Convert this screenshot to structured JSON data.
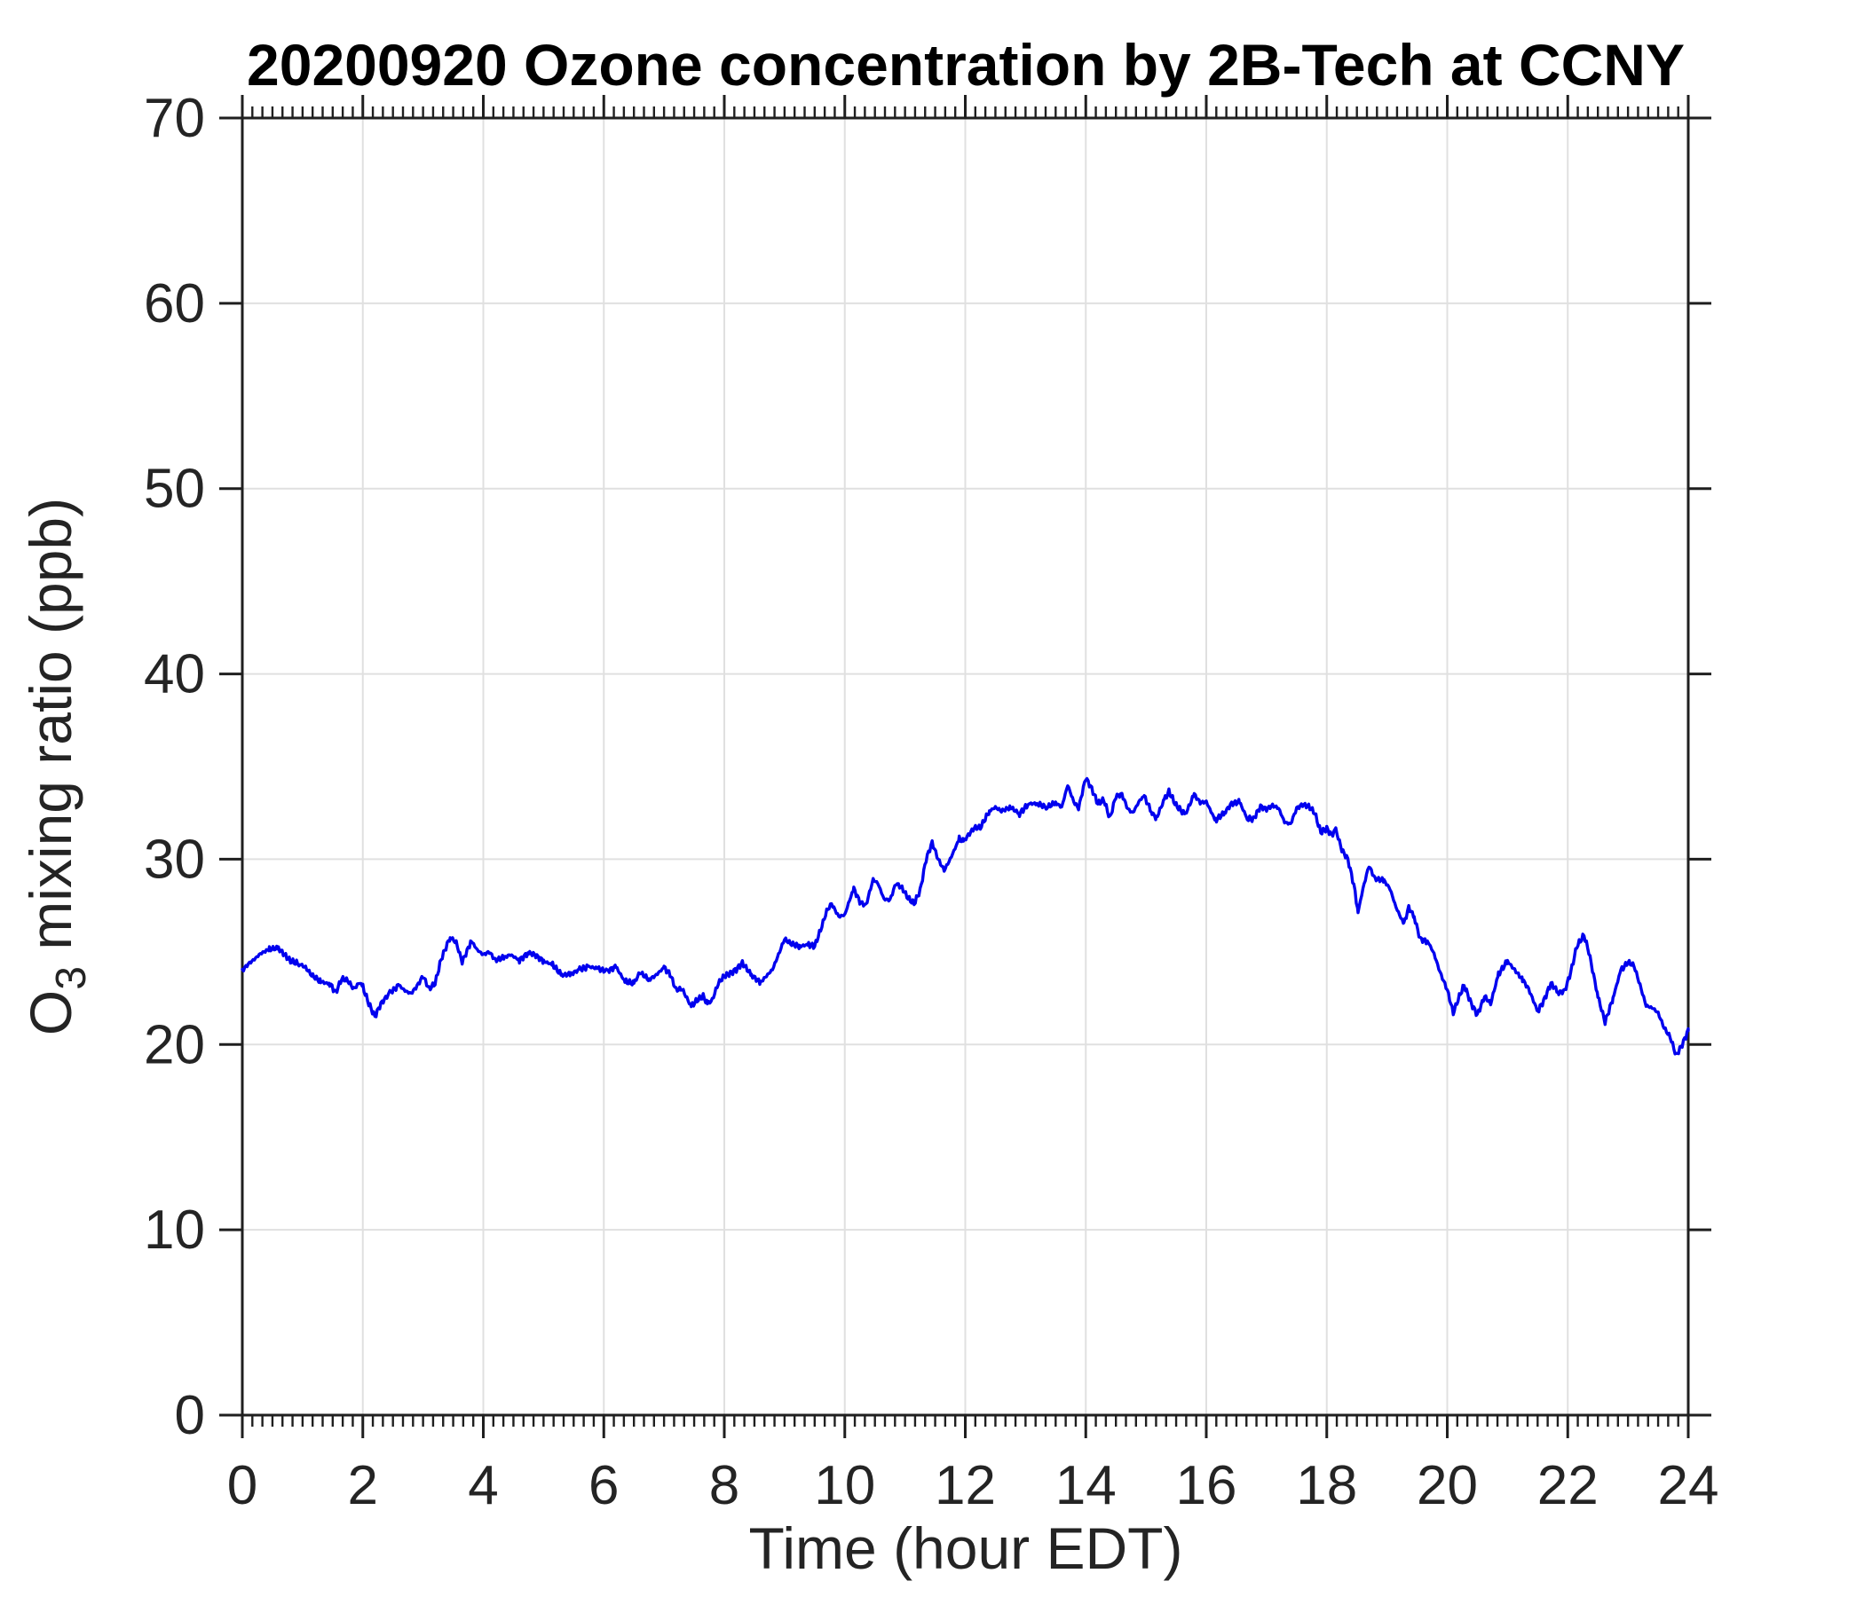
{
  "chart_data": {
    "type": "line",
    "title": "20200920 Ozone concentration by 2B-Tech at CCNY",
    "xlabel": "Time (hour EDT)",
    "ylabel": "O3 mixing ratio (ppb)",
    "ylabel_parts": {
      "pre": "O",
      "sub": "3",
      "post": " mixing ratio (ppb)"
    },
    "xlim": [
      0,
      24
    ],
    "ylim": [
      0,
      70
    ],
    "xticks": [
      0,
      2,
      4,
      6,
      8,
      10,
      12,
      14,
      16,
      18,
      20,
      22,
      24
    ],
    "yticks": [
      0,
      10,
      20,
      30,
      40,
      50,
      60,
      70
    ],
    "xtick_labels": [
      "0",
      "2",
      "4",
      "6",
      "8",
      "10",
      "12",
      "14",
      "16",
      "18",
      "20",
      "22",
      "24"
    ],
    "ytick_labels": [
      "0",
      "10",
      "20",
      "30",
      "40",
      "50",
      "60",
      "70"
    ],
    "x_minor_ticks_per_major": 12,
    "grid": true,
    "legend": "none",
    "line_color": "#0000ee",
    "axis_color": "#1f1f1f",
    "grid_color": "#e0e0e0",
    "series": [
      {
        "name": "O3 mixing ratio",
        "points": [
          [
            0.0,
            24.0
          ],
          [
            0.1,
            24.35
          ],
          [
            0.2,
            24.6
          ],
          [
            0.3,
            24.9
          ],
          [
            0.45,
            25.15
          ],
          [
            0.6,
            25.2
          ],
          [
            0.7,
            24.85
          ],
          [
            0.8,
            24.5
          ],
          [
            0.95,
            24.35
          ],
          [
            1.05,
            24.15
          ],
          [
            1.15,
            23.75
          ],
          [
            1.3,
            23.4
          ],
          [
            1.4,
            23.3
          ],
          [
            1.45,
            23.3
          ],
          [
            1.55,
            22.8
          ],
          [
            1.65,
            23.55
          ],
          [
            1.75,
            23.45
          ],
          [
            1.85,
            23.0
          ],
          [
            1.95,
            23.35
          ],
          [
            2.0,
            23.1
          ],
          [
            2.1,
            22.2
          ],
          [
            2.2,
            21.5
          ],
          [
            2.3,
            22.2
          ],
          [
            2.45,
            22.8
          ],
          [
            2.6,
            23.2
          ],
          [
            2.7,
            22.9
          ],
          [
            2.8,
            22.75
          ],
          [
            2.9,
            23.15
          ],
          [
            3.0,
            23.7
          ],
          [
            3.1,
            23.0
          ],
          [
            3.2,
            23.3
          ],
          [
            3.3,
            24.6
          ],
          [
            3.4,
            25.4
          ],
          [
            3.45,
            25.8
          ],
          [
            3.55,
            25.5
          ],
          [
            3.65,
            24.45
          ],
          [
            3.75,
            25.2
          ],
          [
            3.8,
            25.6
          ],
          [
            3.9,
            25.1
          ],
          [
            4.0,
            24.85
          ],
          [
            4.1,
            25.0
          ],
          [
            4.2,
            24.55
          ],
          [
            4.35,
            24.7
          ],
          [
            4.45,
            24.85
          ],
          [
            4.6,
            24.55
          ],
          [
            4.75,
            24.95
          ],
          [
            4.85,
            24.85
          ],
          [
            5.0,
            24.5
          ],
          [
            5.15,
            24.3
          ],
          [
            5.3,
            23.75
          ],
          [
            5.45,
            23.8
          ],
          [
            5.6,
            24.05
          ],
          [
            5.75,
            24.2
          ],
          [
            5.9,
            24.1
          ],
          [
            6.05,
            23.95
          ],
          [
            6.2,
            24.2
          ],
          [
            6.35,
            23.4
          ],
          [
            6.5,
            23.3
          ],
          [
            6.6,
            23.9
          ],
          [
            6.75,
            23.5
          ],
          [
            6.85,
            23.7
          ],
          [
            7.0,
            24.15
          ],
          [
            7.1,
            23.8
          ],
          [
            7.2,
            22.95
          ],
          [
            7.3,
            23.0
          ],
          [
            7.45,
            22.05
          ],
          [
            7.55,
            22.4
          ],
          [
            7.65,
            22.6
          ],
          [
            7.72,
            22.2
          ],
          [
            7.8,
            22.4
          ],
          [
            7.9,
            23.3
          ],
          [
            8.0,
            23.7
          ],
          [
            8.1,
            23.85
          ],
          [
            8.2,
            24.05
          ],
          [
            8.3,
            24.4
          ],
          [
            8.45,
            23.75
          ],
          [
            8.6,
            23.35
          ],
          [
            8.7,
            23.7
          ],
          [
            8.8,
            24.05
          ],
          [
            8.9,
            24.85
          ],
          [
            9.0,
            25.7
          ],
          [
            9.1,
            25.45
          ],
          [
            9.25,
            25.3
          ],
          [
            9.4,
            25.4
          ],
          [
            9.5,
            25.3
          ],
          [
            9.6,
            26.2
          ],
          [
            9.7,
            27.2
          ],
          [
            9.78,
            27.6
          ],
          [
            9.9,
            26.9
          ],
          [
            10.0,
            27.0
          ],
          [
            10.08,
            27.8
          ],
          [
            10.15,
            28.4
          ],
          [
            10.25,
            27.7
          ],
          [
            10.35,
            27.5
          ],
          [
            10.47,
            28.9
          ],
          [
            10.55,
            28.7
          ],
          [
            10.65,
            27.85
          ],
          [
            10.75,
            27.8
          ],
          [
            10.85,
            28.7
          ],
          [
            10.95,
            28.45
          ],
          [
            11.05,
            27.9
          ],
          [
            11.15,
            27.6
          ],
          [
            11.25,
            28.3
          ],
          [
            11.35,
            30.0
          ],
          [
            11.45,
            30.9
          ],
          [
            11.55,
            30.0
          ],
          [
            11.65,
            29.4
          ],
          [
            11.75,
            30.0
          ],
          [
            11.9,
            31.1
          ],
          [
            11.97,
            30.95
          ],
          [
            12.05,
            31.3
          ],
          [
            12.15,
            31.7
          ],
          [
            12.25,
            31.7
          ],
          [
            12.4,
            32.6
          ],
          [
            12.5,
            32.8
          ],
          [
            12.6,
            32.6
          ],
          [
            12.75,
            32.8
          ],
          [
            12.9,
            32.45
          ],
          [
            13.05,
            33.0
          ],
          [
            13.2,
            33.0
          ],
          [
            13.35,
            32.8
          ],
          [
            13.5,
            33.05
          ],
          [
            13.6,
            32.8
          ],
          [
            13.7,
            34.0
          ],
          [
            13.8,
            33.1
          ],
          [
            13.88,
            32.75
          ],
          [
            14.0,
            34.4
          ],
          [
            14.1,
            33.8
          ],
          [
            14.2,
            33.0
          ],
          [
            14.3,
            33.2
          ],
          [
            14.4,
            32.2
          ],
          [
            14.5,
            33.4
          ],
          [
            14.6,
            33.5
          ],
          [
            14.7,
            32.7
          ],
          [
            14.78,
            32.5
          ],
          [
            14.9,
            33.2
          ],
          [
            14.97,
            33.4
          ],
          [
            15.1,
            32.5
          ],
          [
            15.17,
            32.2
          ],
          [
            15.3,
            33.2
          ],
          [
            15.38,
            33.65
          ],
          [
            15.5,
            32.9
          ],
          [
            15.65,
            32.4
          ],
          [
            15.8,
            33.5
          ],
          [
            15.9,
            33.05
          ],
          [
            16.0,
            33.1
          ],
          [
            16.15,
            32.1
          ],
          [
            16.3,
            32.5
          ],
          [
            16.42,
            33.0
          ],
          [
            16.55,
            33.1
          ],
          [
            16.68,
            32.2
          ],
          [
            16.78,
            32.15
          ],
          [
            16.9,
            32.85
          ],
          [
            17.0,
            32.7
          ],
          [
            17.1,
            32.9
          ],
          [
            17.2,
            32.75
          ],
          [
            17.3,
            32.0
          ],
          [
            17.4,
            31.9
          ],
          [
            17.5,
            32.75
          ],
          [
            17.6,
            32.95
          ],
          [
            17.7,
            32.85
          ],
          [
            17.8,
            32.5
          ],
          [
            17.9,
            31.45
          ],
          [
            18.0,
            31.65
          ],
          [
            18.08,
            31.3
          ],
          [
            18.15,
            31.6
          ],
          [
            18.25,
            30.5
          ],
          [
            18.35,
            30.0
          ],
          [
            18.45,
            28.6
          ],
          [
            18.52,
            27.15
          ],
          [
            18.6,
            28.4
          ],
          [
            18.7,
            29.65
          ],
          [
            18.8,
            28.95
          ],
          [
            18.95,
            28.85
          ],
          [
            19.05,
            28.4
          ],
          [
            19.15,
            27.4
          ],
          [
            19.28,
            26.5
          ],
          [
            19.36,
            27.4
          ],
          [
            19.45,
            26.9
          ],
          [
            19.55,
            25.7
          ],
          [
            19.68,
            25.55
          ],
          [
            19.78,
            24.9
          ],
          [
            19.88,
            23.9
          ],
          [
            20.0,
            22.95
          ],
          [
            20.1,
            21.7
          ],
          [
            20.2,
            22.6
          ],
          [
            20.28,
            23.2
          ],
          [
            20.4,
            22.2
          ],
          [
            20.5,
            21.6
          ],
          [
            20.62,
            22.6
          ],
          [
            20.72,
            22.2
          ],
          [
            20.85,
            23.8
          ],
          [
            21.0,
            24.5
          ],
          [
            21.1,
            24.1
          ],
          [
            21.25,
            23.5
          ],
          [
            21.35,
            23.0
          ],
          [
            21.5,
            21.8
          ],
          [
            21.6,
            22.35
          ],
          [
            21.72,
            23.3
          ],
          [
            21.85,
            22.8
          ],
          [
            21.95,
            22.9
          ],
          [
            22.05,
            23.9
          ],
          [
            22.15,
            25.3
          ],
          [
            22.27,
            25.9
          ],
          [
            22.35,
            25.0
          ],
          [
            22.5,
            22.6
          ],
          [
            22.62,
            21.2
          ],
          [
            22.75,
            22.5
          ],
          [
            22.88,
            24.0
          ],
          [
            23.0,
            24.45
          ],
          [
            23.1,
            24.25
          ],
          [
            23.2,
            23.2
          ],
          [
            23.3,
            22.1
          ],
          [
            23.42,
            21.95
          ],
          [
            23.5,
            21.7
          ],
          [
            23.6,
            20.9
          ],
          [
            23.7,
            20.4
          ],
          [
            23.8,
            19.4
          ],
          [
            23.9,
            20.0
          ],
          [
            24.0,
            20.75
          ]
        ]
      }
    ]
  }
}
